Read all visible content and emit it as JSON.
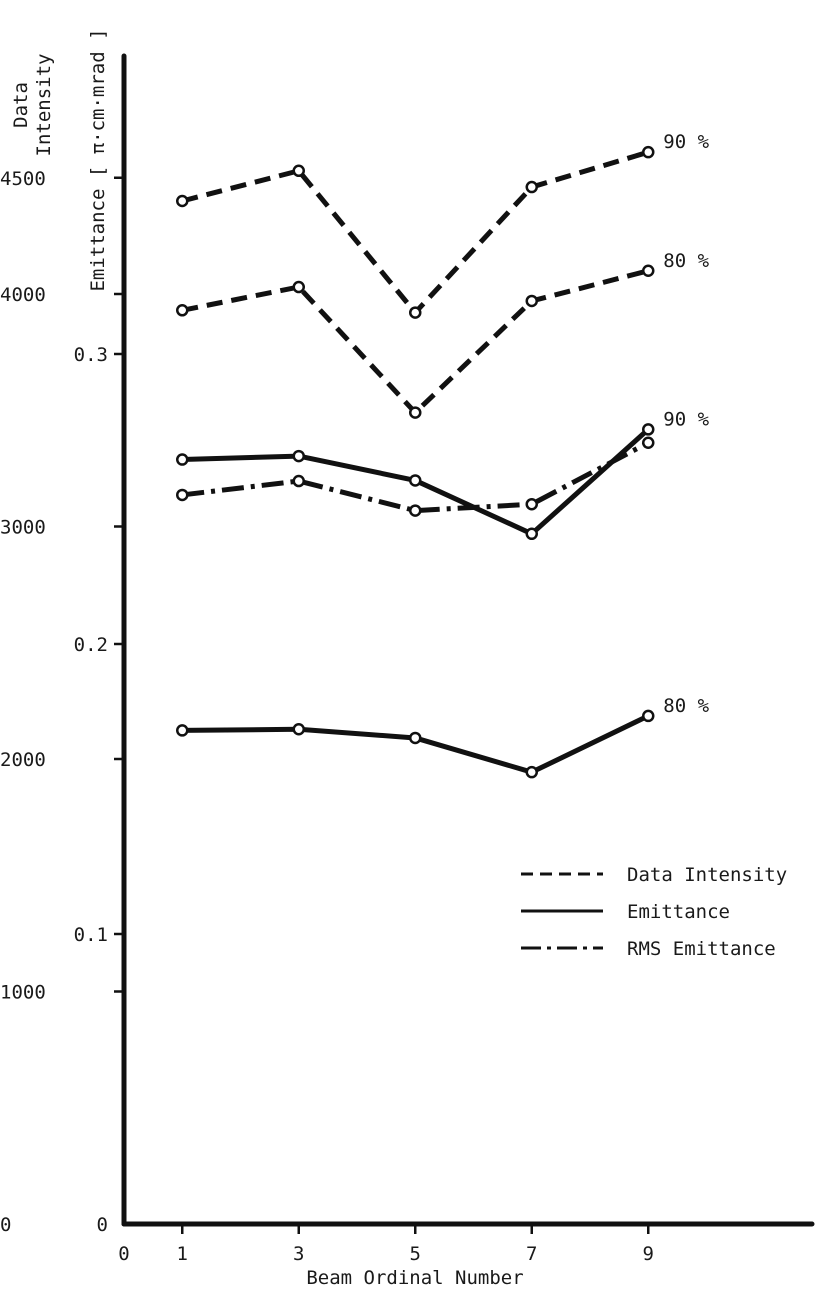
{
  "chart_data": {
    "type": "line",
    "xlabel": "Beam Ordinal Number",
    "x_ticks": [
      0,
      1,
      3,
      5,
      7,
      9
    ],
    "xlim": [
      0,
      11
    ],
    "left_axis": {
      "label_line1": "Data",
      "label_line2": "Intensity",
      "ticks": [
        0,
        1000,
        2000,
        3000,
        4000,
        4500
      ],
      "ylim": [
        0,
        5000
      ]
    },
    "right_axis": {
      "label": "Emittance [ π·cm·mrad ]",
      "ticks": [
        0,
        0.1,
        0.2,
        0.3
      ],
      "ylim": [
        0,
        0.4
      ]
    },
    "x": [
      1,
      3,
      5,
      7,
      9
    ],
    "series": [
      {
        "legend": "Data Intensity",
        "label": "90 %",
        "axis": "left",
        "style": "dashed",
        "values": [
          4400,
          4530,
          3920,
          4460,
          4610
        ]
      },
      {
        "legend": "Data Intensity",
        "label": "80 %",
        "axis": "left",
        "style": "dashed",
        "values": [
          3930,
          4030,
          3490,
          3970,
          4100
        ]
      },
      {
        "legend": "Emittance",
        "label": "90 %",
        "axis": "right",
        "style": "solid",
        "values": [
          0.2636,
          0.2648,
          0.2564,
          0.238,
          0.274
        ]
      },
      {
        "legend": "RMS Emittance",
        "label": "",
        "axis": "right",
        "style": "dashdot",
        "values": [
          0.2514,
          0.2562,
          0.246,
          0.2482,
          0.2694
        ]
      },
      {
        "legend": "Emittance",
        "label": "80 %",
        "axis": "right",
        "style": "solid",
        "values": [
          0.1702,
          0.1706,
          0.1676,
          0.1558,
          0.1752
        ]
      }
    ],
    "legend": {
      "placement": "lower-right",
      "entries": [
        {
          "label": "Data Intensity",
          "style": "dashed"
        },
        {
          "label": "Emittance",
          "style": "solid"
        },
        {
          "label": "RMS Emittance",
          "style": "dashdot"
        }
      ]
    },
    "grid": false
  }
}
